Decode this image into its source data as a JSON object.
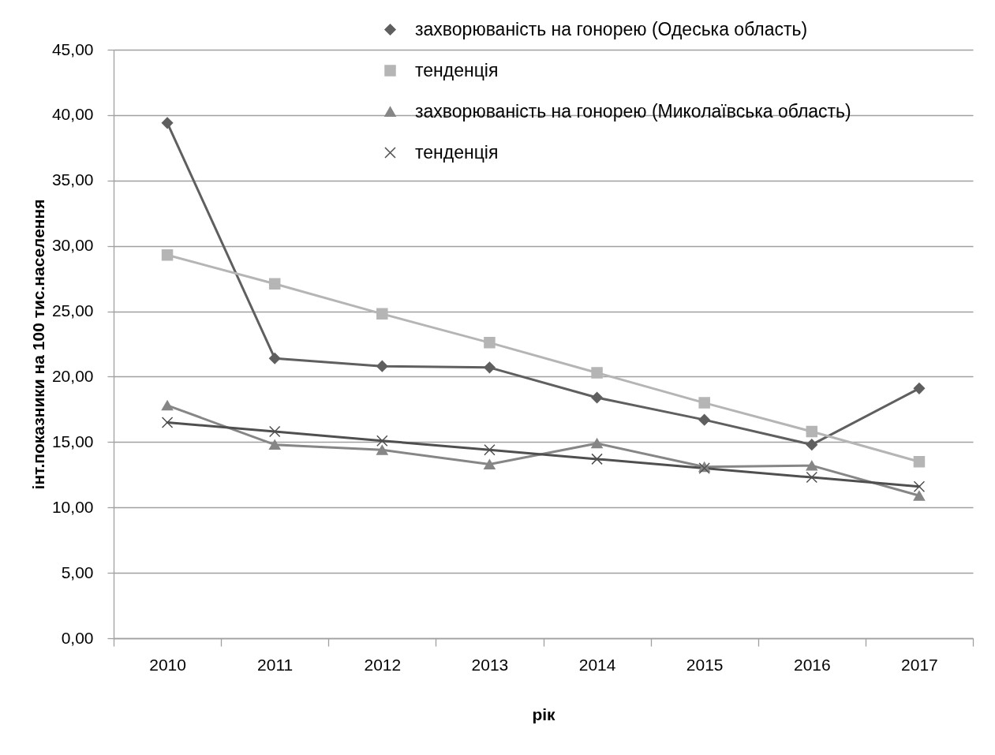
{
  "chart_data": {
    "type": "line",
    "xlabel": "рік",
    "ylabel": "інт.показники на 100 тис.населення",
    "categories": [
      "2010",
      "2011",
      "2012",
      "2013",
      "2014",
      "2015",
      "2016",
      "2017"
    ],
    "series": [
      {
        "name": "захворюваність на гонорею (Одеська область)",
        "color": "#5f5f5f",
        "marker": "diamond",
        "values": [
          39.4,
          21.4,
          20.8,
          20.7,
          18.4,
          16.7,
          14.8,
          19.1
        ]
      },
      {
        "name": "тенденція",
        "color": "#b5b5b5",
        "marker": "square",
        "values": [
          29.3,
          27.1,
          24.8,
          22.6,
          20.3,
          18.0,
          15.8,
          13.5
        ]
      },
      {
        "name": "захворюваність на гонорею (Миколаївська область)",
        "color": "#868686",
        "marker": "triangle",
        "values": [
          17.8,
          14.8,
          14.4,
          13.3,
          14.9,
          13.1,
          13.2,
          10.9
        ]
      },
      {
        "name": "тенденція",
        "color": "#4f4f4f",
        "marker": "cross",
        "values": [
          16.5,
          15.8,
          15.1,
          14.4,
          13.7,
          13.0,
          12.3,
          11.6
        ]
      }
    ],
    "ylim": [
      0,
      45
    ],
    "yticks": [
      {
        "value": 0,
        "label": "0,00"
      },
      {
        "value": 5,
        "label": "5,00"
      },
      {
        "value": 10,
        "label": "10,00"
      },
      {
        "value": 15,
        "label": "15,00"
      },
      {
        "value": 20,
        "label": "20,00"
      },
      {
        "value": 25,
        "label": "25,00"
      },
      {
        "value": 30,
        "label": "30,00"
      },
      {
        "value": 35,
        "label": "35,00"
      },
      {
        "value": 40,
        "label": "40,00"
      },
      {
        "value": 45,
        "label": "45,00"
      }
    ],
    "grid": "y",
    "legend": "top right"
  }
}
